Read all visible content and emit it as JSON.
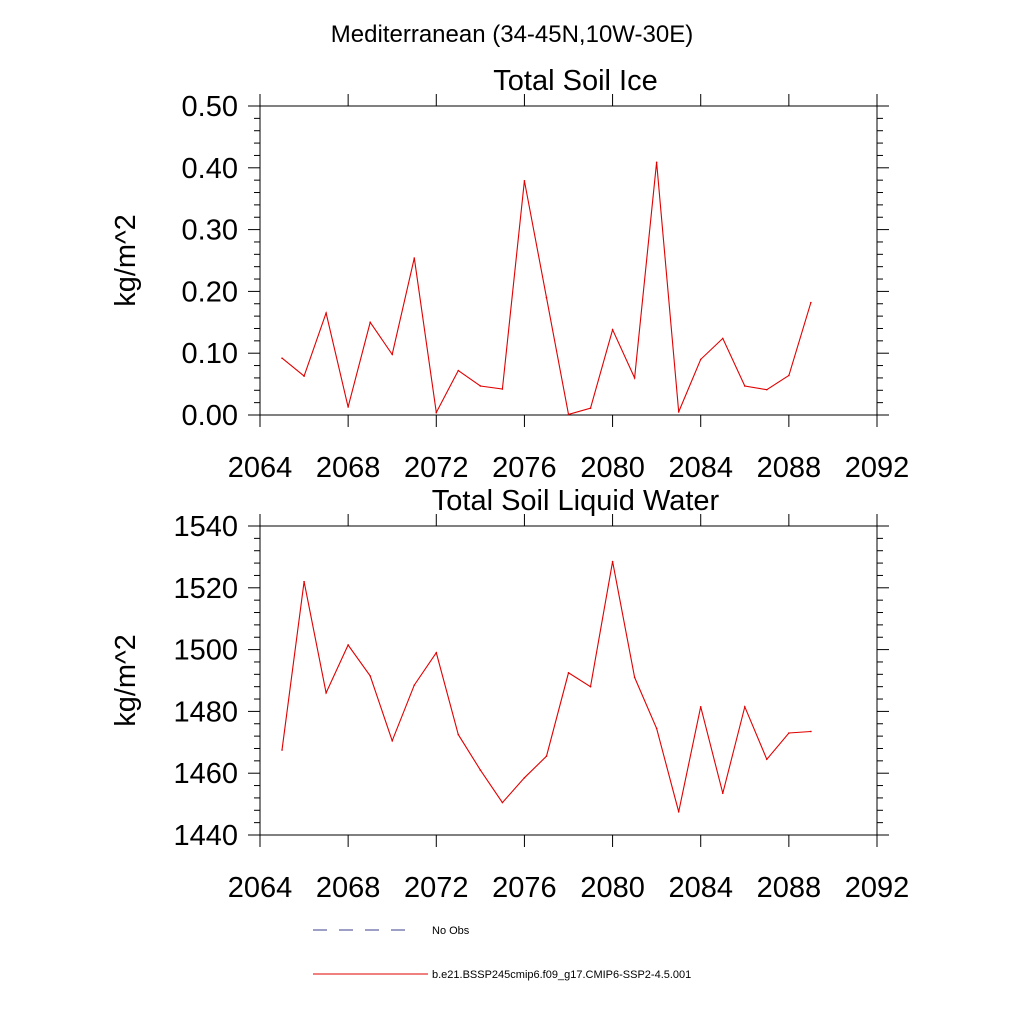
{
  "figure_title": "Mediterranean (34-45N,10W-30E)",
  "legend": [
    {
      "label": "No Obs",
      "color": "#3b3f8c",
      "dash": "dashed"
    },
    {
      "label": "b.e21.BSSP245cmip6.f09_g17.CMIP6-SSP2-4.5.001",
      "color": "#e00000",
      "dash": "solid"
    }
  ],
  "chart_data": [
    {
      "type": "line",
      "title": "Total Soil Ice",
      "xlabel": "",
      "ylabel": "kg/m^2",
      "xlim": [
        2064,
        2092
      ],
      "ylim": [
        0,
        0.5
      ],
      "xticks": [
        2064,
        2068,
        2072,
        2076,
        2080,
        2084,
        2088,
        2092
      ],
      "xtick_labels": [
        "2064",
        "2068",
        "2072",
        "2076",
        "2080",
        "2084",
        "2088",
        "2092"
      ],
      "yticks": [
        0,
        0.1,
        0.2,
        0.3,
        0.4,
        0.5
      ],
      "ytick_labels": [
        "0.00",
        "0.10",
        "0.20",
        "0.30",
        "0.40",
        "0.50"
      ],
      "grid": false,
      "x": [
        2065,
        2066,
        2067,
        2068,
        2069,
        2070,
        2071,
        2072,
        2073,
        2074,
        2075,
        2076,
        2077,
        2078,
        2079,
        2080,
        2081,
        2082,
        2083,
        2084,
        2085,
        2086,
        2087,
        2088,
        2089
      ],
      "series": [
        {
          "name": "b.e21.BSSP245cmip6.f09_g17.CMIP6-SSP2-4.5.001",
          "color": "#e00000",
          "values": [
            0.092,
            0.063,
            0.165,
            0.013,
            0.15,
            0.098,
            0.254,
            0.004,
            0.072,
            0.047,
            0.042,
            0.379,
            0.19,
            0.001,
            0.011,
            0.138,
            0.06,
            0.409,
            0.005,
            0.09,
            0.124,
            0.047,
            0.041,
            0.064,
            0.182
          ]
        }
      ]
    },
    {
      "type": "line",
      "title": "Total Soil Liquid Water",
      "xlabel": "",
      "ylabel": "kg/m^2",
      "xlim": [
        2064,
        2092
      ],
      "ylim": [
        1440,
        1540
      ],
      "xticks": [
        2064,
        2068,
        2072,
        2076,
        2080,
        2084,
        2088,
        2092
      ],
      "xtick_labels": [
        "2064",
        "2068",
        "2072",
        "2076",
        "2080",
        "2084",
        "2088",
        "2092"
      ],
      "yticks": [
        1440,
        1460,
        1480,
        1500,
        1520,
        1540
      ],
      "ytick_labels": [
        "1440",
        "1460",
        "1480",
        "1500",
        "1520",
        "1540"
      ],
      "grid": false,
      "x": [
        2065,
        2066,
        2067,
        2068,
        2069,
        2070,
        2071,
        2072,
        2073,
        2074,
        2075,
        2076,
        2077,
        2078,
        2079,
        2080,
        2081,
        2082,
        2083,
        2084,
        2085,
        2086,
        2087,
        2088,
        2089
      ],
      "series": [
        {
          "name": "b.e21.BSSP245cmip6.f09_g17.CMIP6-SSP2-4.5.001",
          "color": "#e00000",
          "values": [
            1467.5,
            1522,
            1486,
            1501.5,
            1491.5,
            1470.5,
            1488.5,
            1499,
            1472.5,
            1461,
            1450.5,
            1458.5,
            1465.5,
            1492.5,
            1488,
            1528.5,
            1491,
            1474.5,
            1447.5,
            1481.5,
            1453.5,
            1481.5,
            1464.5,
            1473,
            1473.5
          ]
        }
      ]
    }
  ]
}
